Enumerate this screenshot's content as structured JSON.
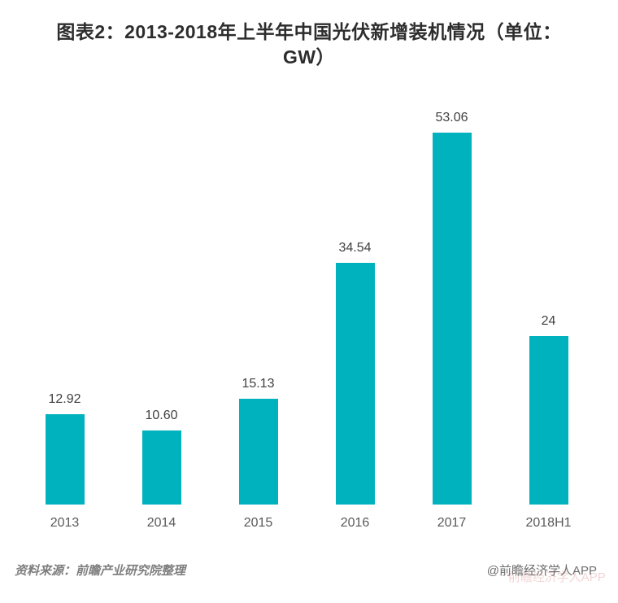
{
  "title": {
    "line1": "图表2：2013-2018年上半年中国光伏新增装机情况（单位：",
    "line2": "GW）"
  },
  "chart_data": {
    "type": "bar",
    "title": "图表2：2013-2018年上半年中国光伏新增装机情况（单位：GW）",
    "unit": "GW",
    "categories": [
      "2013",
      "2014",
      "2015",
      "2016",
      "2017",
      "2018H1"
    ],
    "values": [
      12.92,
      10.6,
      15.13,
      34.54,
      53.06,
      24
    ],
    "value_labels": [
      "12.92",
      "10.60",
      "15.13",
      "34.54",
      "53.06",
      "24"
    ],
    "bar_color": "#00b2be",
    "ylim": [
      0,
      53.06
    ],
    "grid": false,
    "legend": "none",
    "xlabel": "",
    "ylabel": ""
  },
  "footer": {
    "source": "资料来源：前瞻产业研究院整理",
    "credit": "@前瞻经济学人APP",
    "watermark": "前瞻经济学人APP"
  }
}
